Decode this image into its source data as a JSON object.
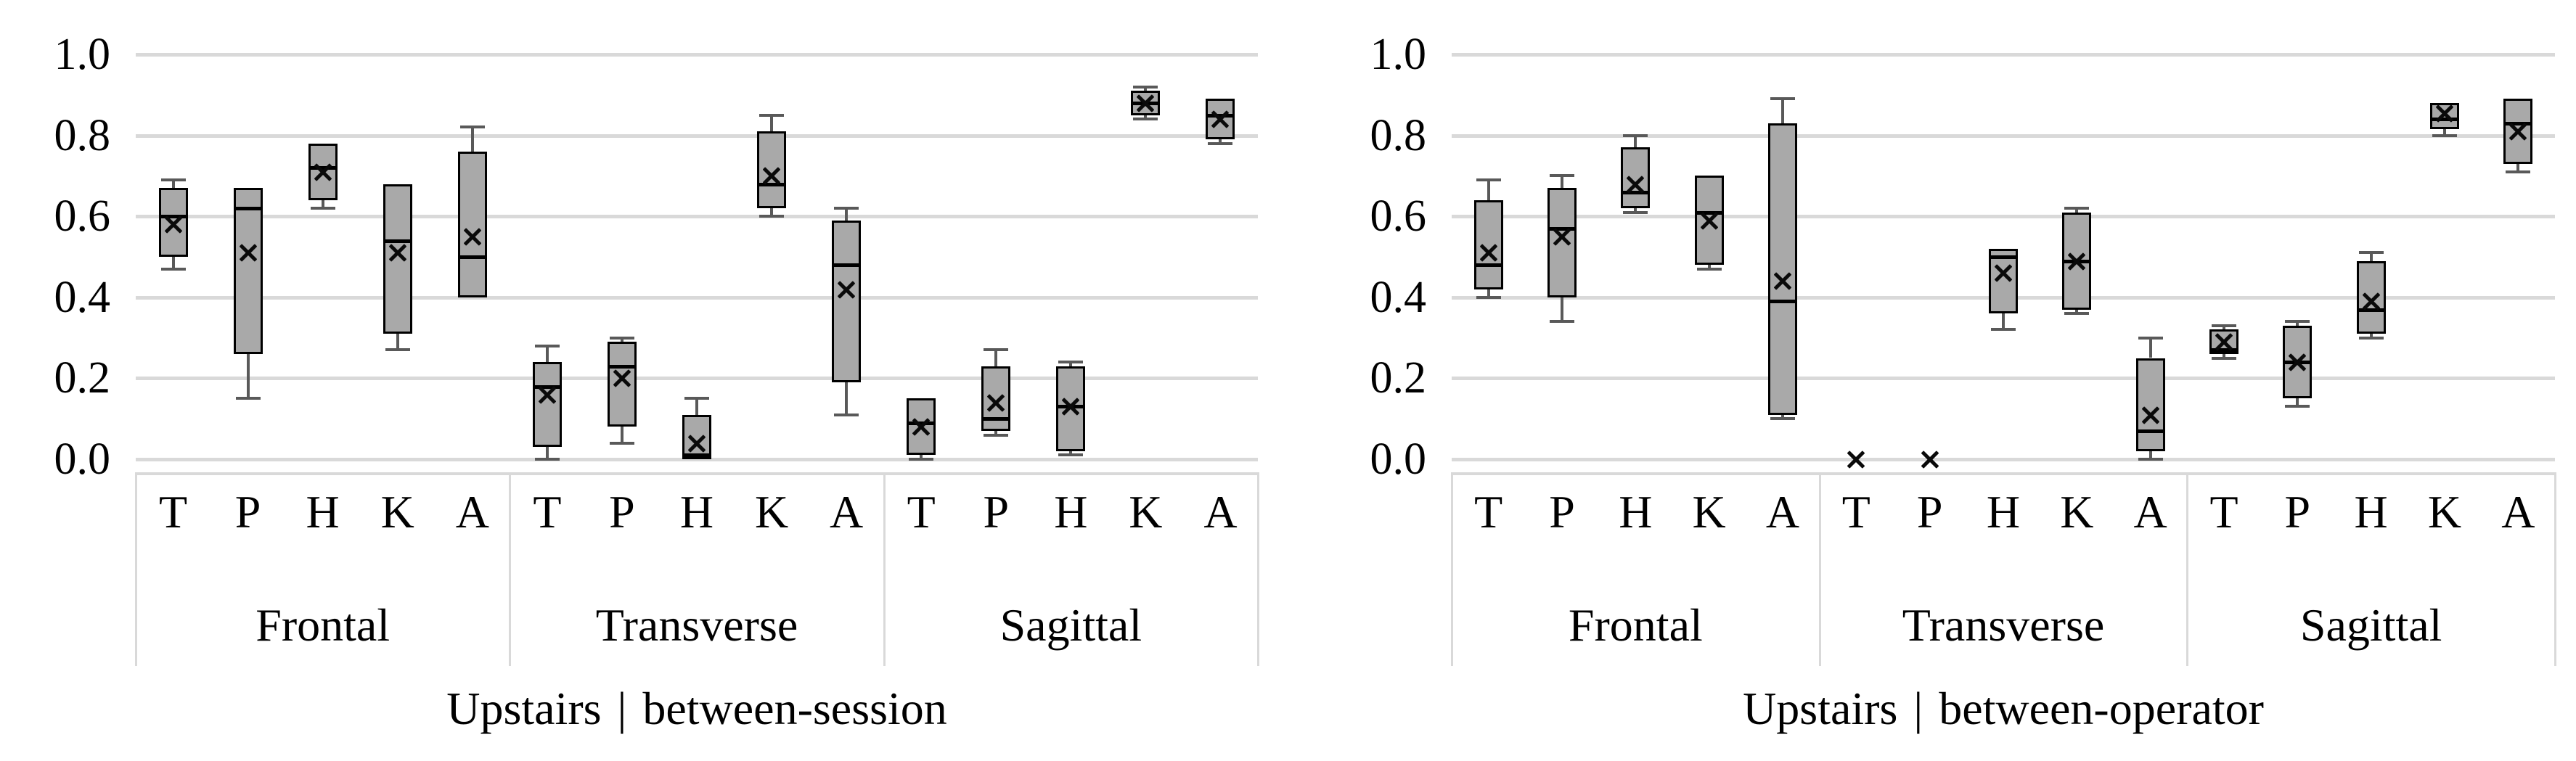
{
  "page": {
    "background": "#FFFFFF"
  },
  "colors": {
    "box_fill": "#A9A9A9",
    "box_border": "#000000",
    "median": "#000000",
    "whisker": "#595959",
    "gridline": "#D9D9D9",
    "mean_marker": "#0A0A0A",
    "text": "#000000"
  },
  "chart_data": [
    {
      "type": "boxplot",
      "title": "Upstairs | between-session",
      "title_prefix": "Upstairs",
      "title_separator": "|",
      "title_suffix": "between-session",
      "ylim": [
        0.0,
        1.0
      ],
      "yticks": [
        "1.0",
        "0.8",
        "0.6",
        "0.4",
        "0.2",
        "0.0"
      ],
      "grid": true,
      "legend": "none",
      "mean_marker_symbol": "x",
      "groups": [
        "Frontal",
        "Transverse",
        "Sagittal"
      ],
      "categories": [
        "T",
        "P",
        "H",
        "K",
        "A"
      ],
      "series": [
        {
          "group": "Frontal",
          "label": "T",
          "min": 0.47,
          "q1": 0.5,
          "median": 0.6,
          "q3": 0.67,
          "max": 0.69,
          "mean": 0.58
        },
        {
          "group": "Frontal",
          "label": "P",
          "min": 0.15,
          "q1": 0.26,
          "median": 0.62,
          "q3": 0.67,
          "max": 0.67,
          "mean": 0.51
        },
        {
          "group": "Frontal",
          "label": "H",
          "min": 0.62,
          "q1": 0.64,
          "median": 0.72,
          "q3": 0.78,
          "max": 0.78,
          "mean": 0.71
        },
        {
          "group": "Frontal",
          "label": "K",
          "min": 0.27,
          "q1": 0.31,
          "median": 0.54,
          "q3": 0.68,
          "max": 0.68,
          "mean": 0.51
        },
        {
          "group": "Frontal",
          "label": "A",
          "min": 0.4,
          "q1": 0.4,
          "median": 0.5,
          "q3": 0.76,
          "max": 0.82,
          "mean": 0.55
        },
        {
          "group": "Transverse",
          "label": "T",
          "min": 0.0,
          "q1": 0.03,
          "median": 0.18,
          "q3": 0.24,
          "max": 0.28,
          "mean": 0.16
        },
        {
          "group": "Transverse",
          "label": "P",
          "min": 0.04,
          "q1": 0.08,
          "median": 0.23,
          "q3": 0.29,
          "max": 0.3,
          "mean": 0.2
        },
        {
          "group": "Transverse",
          "label": "H",
          "min": 0.0,
          "q1": 0.0,
          "median": 0.01,
          "q3": 0.11,
          "max": 0.15,
          "mean": 0.04
        },
        {
          "group": "Transverse",
          "label": "K",
          "min": 0.6,
          "q1": 0.62,
          "median": 0.68,
          "q3": 0.81,
          "max": 0.85,
          "mean": 0.7
        },
        {
          "group": "Transverse",
          "label": "A",
          "min": 0.11,
          "q1": 0.19,
          "median": 0.48,
          "q3": 0.59,
          "max": 0.62,
          "mean": 0.42
        },
        {
          "group": "Sagittal",
          "label": "T",
          "min": 0.0,
          "q1": 0.01,
          "median": 0.09,
          "q3": 0.15,
          "max": 0.15,
          "mean": 0.08
        },
        {
          "group": "Sagittal",
          "label": "P",
          "min": 0.06,
          "q1": 0.07,
          "median": 0.1,
          "q3": 0.23,
          "max": 0.27,
          "mean": 0.14
        },
        {
          "group": "Sagittal",
          "label": "H",
          "min": 0.01,
          "q1": 0.02,
          "median": 0.13,
          "q3": 0.23,
          "max": 0.24,
          "mean": 0.13
        },
        {
          "group": "Sagittal",
          "label": "K",
          "min": 0.84,
          "q1": 0.85,
          "median": 0.88,
          "q3": 0.91,
          "max": 0.92,
          "mean": 0.88
        },
        {
          "group": "Sagittal",
          "label": "A",
          "min": 0.78,
          "q1": 0.79,
          "median": 0.85,
          "q3": 0.89,
          "max": 0.89,
          "mean": 0.84
        }
      ]
    },
    {
      "type": "boxplot",
      "title": "Upstairs | between-operator",
      "title_prefix": "Upstairs",
      "title_separator": "|",
      "title_suffix": "between-operator",
      "ylim": [
        0.0,
        1.0
      ],
      "yticks": [
        "1.0",
        "0.8",
        "0.6",
        "0.4",
        "0.2",
        "0.0"
      ],
      "grid": true,
      "legend": "none",
      "mean_marker_symbol": "x",
      "groups": [
        "Frontal",
        "Transverse",
        "Sagittal"
      ],
      "categories": [
        "T",
        "P",
        "H",
        "K",
        "A"
      ],
      "series": [
        {
          "group": "Frontal",
          "label": "T",
          "min": 0.4,
          "q1": 0.42,
          "median": 0.48,
          "q3": 0.64,
          "max": 0.69,
          "mean": 0.51
        },
        {
          "group": "Frontal",
          "label": "P",
          "min": 0.34,
          "q1": 0.4,
          "median": 0.57,
          "q3": 0.67,
          "max": 0.7,
          "mean": 0.55
        },
        {
          "group": "Frontal",
          "label": "H",
          "min": 0.61,
          "q1": 0.62,
          "median": 0.66,
          "q3": 0.77,
          "max": 0.8,
          "mean": 0.68
        },
        {
          "group": "Frontal",
          "label": "K",
          "min": 0.47,
          "q1": 0.48,
          "median": 0.61,
          "q3": 0.7,
          "max": 0.7,
          "mean": 0.59
        },
        {
          "group": "Frontal",
          "label": "A",
          "min": 0.1,
          "q1": 0.11,
          "median": 0.39,
          "q3": 0.83,
          "max": 0.89,
          "mean": 0.44
        },
        {
          "group": "Transverse",
          "label": "T",
          "min": 0.0,
          "q1": 0.0,
          "median": 0.0,
          "q3": 0.0,
          "max": 0.0,
          "mean": 0.0
        },
        {
          "group": "Transverse",
          "label": "P",
          "min": 0.0,
          "q1": 0.0,
          "median": 0.0,
          "q3": 0.0,
          "max": 0.0,
          "mean": 0.0
        },
        {
          "group": "Transverse",
          "label": "H",
          "min": 0.32,
          "q1": 0.36,
          "median": 0.5,
          "q3": 0.52,
          "max": 0.52,
          "mean": 0.46
        },
        {
          "group": "Transverse",
          "label": "K",
          "min": 0.36,
          "q1": 0.37,
          "median": 0.49,
          "q3": 0.61,
          "max": 0.62,
          "mean": 0.49
        },
        {
          "group": "Transverse",
          "label": "A",
          "min": 0.0,
          "q1": 0.02,
          "median": 0.07,
          "q3": 0.25,
          "max": 0.3,
          "mean": 0.11
        },
        {
          "group": "Sagittal",
          "label": "T",
          "min": 0.25,
          "q1": 0.26,
          "median": 0.27,
          "q3": 0.32,
          "max": 0.33,
          "mean": 0.29
        },
        {
          "group": "Sagittal",
          "label": "P",
          "min": 0.13,
          "q1": 0.15,
          "median": 0.24,
          "q3": 0.33,
          "max": 0.34,
          "mean": 0.24
        },
        {
          "group": "Sagittal",
          "label": "H",
          "min": 0.3,
          "q1": 0.31,
          "median": 0.37,
          "q3": 0.49,
          "max": 0.51,
          "mean": 0.39
        },
        {
          "group": "Sagittal",
          "label": "K",
          "min": 0.8,
          "q1": 0.815,
          "median": 0.84,
          "q3": 0.88,
          "max": 0.88,
          "mean": 0.855
        },
        {
          "group": "Sagittal",
          "label": "A",
          "min": 0.71,
          "q1": 0.73,
          "median": 0.83,
          "q3": 0.89,
          "max": 0.89,
          "mean": 0.81
        }
      ]
    }
  ]
}
